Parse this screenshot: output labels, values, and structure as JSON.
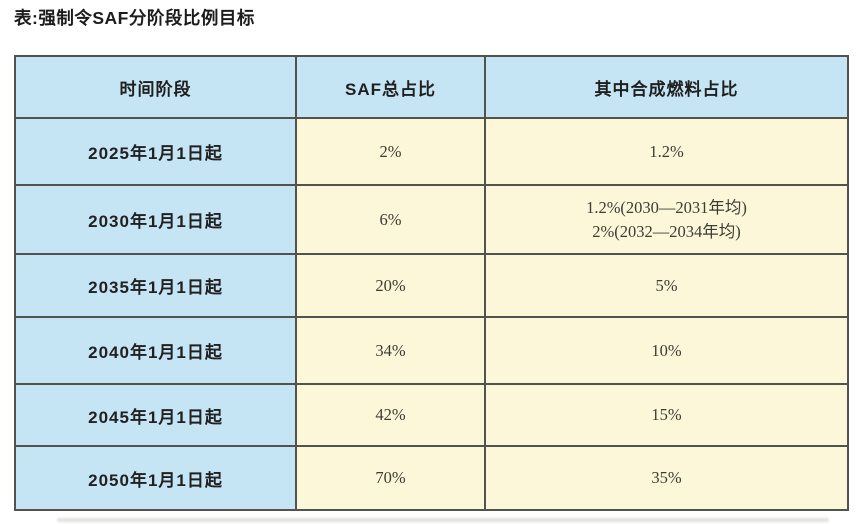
{
  "title": "表:强制令SAF分阶段比例目标",
  "table": {
    "headers": [
      "时间阶段",
      "SAF总占比",
      "其中合成燃料占比"
    ],
    "rows": [
      {
        "period": "2025年1月1日起",
        "saf_total": "2%",
        "synthetic": [
          "1.2%"
        ]
      },
      {
        "period": "2030年1月1日起",
        "saf_total": "6%",
        "synthetic": [
          "1.2%(2030—2031年均)",
          "2%(2032—2034年均)"
        ]
      },
      {
        "period": "2035年1月1日起",
        "saf_total": "20%",
        "synthetic": [
          "5%"
        ]
      },
      {
        "period": "2040年1月1日起",
        "saf_total": "34%",
        "synthetic": [
          "10%"
        ]
      },
      {
        "period": "2045年1月1日起",
        "saf_total": "42%",
        "synthetic": [
          "15%"
        ]
      },
      {
        "period": "2050年1月1日起",
        "saf_total": "70%",
        "synthetic": [
          "35%"
        ]
      }
    ],
    "colors": {
      "header_bg": "#c6e5f4",
      "period_column_bg": "#c6e5f4",
      "value_cell_bg": "#fbf7d8",
      "border": "#52534c",
      "heading_text": "#1f1f1f",
      "value_text": "#3c3c33"
    }
  },
  "chart_data": {
    "type": "table",
    "title": "表:强制令SAF分阶段比例目标",
    "columns": [
      "时间阶段",
      "SAF总占比",
      "其中合成燃料占比"
    ],
    "rows": [
      [
        "2025年1月1日起",
        "2%",
        "1.2%"
      ],
      [
        "2030年1月1日起",
        "6%",
        "1.2%(2030—2031年均); 2%(2032—2034年均)"
      ],
      [
        "2035年1月1日起",
        "20%",
        "5%"
      ],
      [
        "2040年1月1日起",
        "34%",
        "10%"
      ],
      [
        "2045年1月1日起",
        "42%",
        "15%"
      ],
      [
        "2050年1月1日起",
        "70%",
        "35%"
      ]
    ]
  }
}
